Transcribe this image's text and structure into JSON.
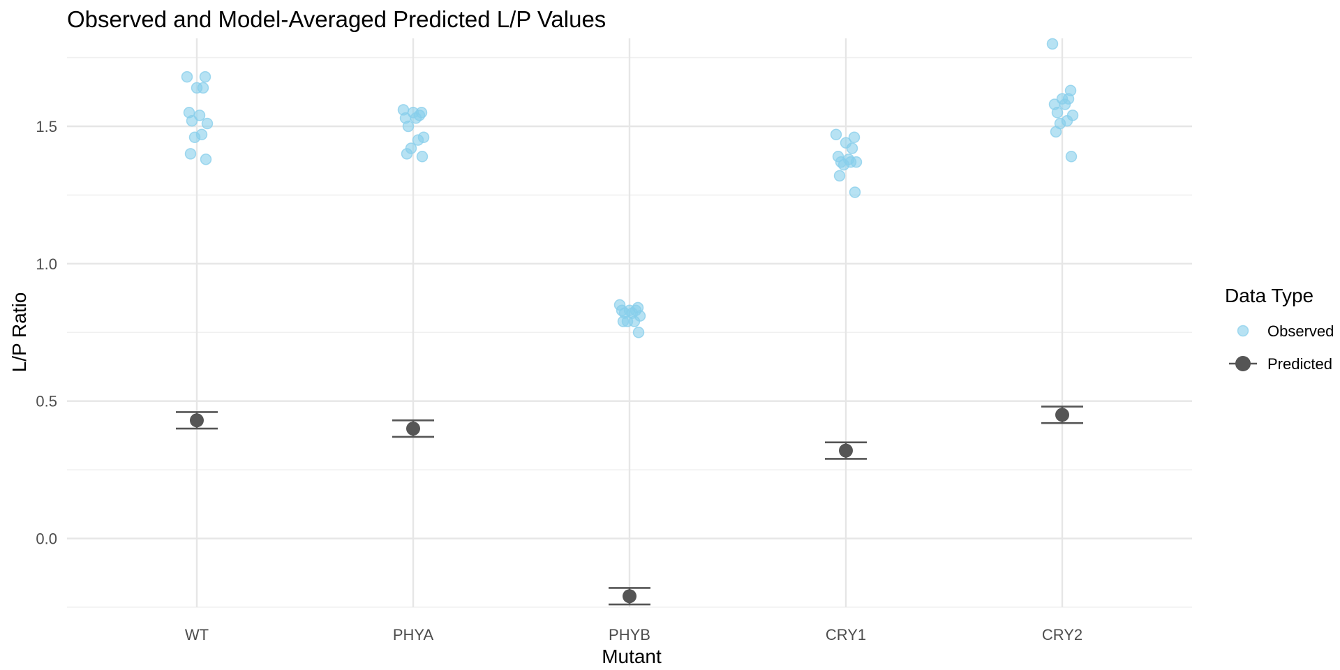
{
  "chart_data": {
    "type": "scatter",
    "title": "Observed and Model-Averaged Predicted L/P Values",
    "xlabel": "Mutant",
    "ylabel": "L/P Ratio",
    "categories": [
      "WT",
      "PHYA",
      "PHYB",
      "CRY1",
      "CRY2"
    ],
    "ylim": [
      -0.25,
      1.82
    ],
    "yticks": [
      0.0,
      0.5,
      1.0,
      1.5
    ],
    "ytick_labels": [
      "0.0",
      "0.5",
      "1.0",
      "1.5"
    ],
    "grid": true,
    "legend": {
      "title": "Data Type",
      "placement": "right",
      "entries": [
        "Observed",
        "Predicted"
      ]
    },
    "series": [
      {
        "name": "Observed",
        "style": "points",
        "color": "#87CEEB",
        "points": {
          "WT": [
            1.68,
            1.68,
            1.64,
            1.64,
            1.55,
            1.54,
            1.52,
            1.51,
            1.47,
            1.46,
            1.4,
            1.38
          ],
          "PHYA": [
            1.56,
            1.55,
            1.55,
            1.54,
            1.53,
            1.53,
            1.5,
            1.46,
            1.45,
            1.42,
            1.4,
            1.39
          ],
          "PHYB": [
            0.85,
            0.84,
            0.83,
            0.83,
            0.83,
            0.82,
            0.82,
            0.81,
            0.79,
            0.79,
            0.79,
            0.75
          ],
          "CRY1": [
            1.47,
            1.46,
            1.44,
            1.42,
            1.39,
            1.38,
            1.37,
            1.37,
            1.37,
            1.36,
            1.32,
            1.26
          ],
          "CRY2": [
            1.8,
            1.63,
            1.6,
            1.6,
            1.58,
            1.58,
            1.55,
            1.54,
            1.52,
            1.51,
            1.48,
            1.39
          ]
        }
      },
      {
        "name": "Predicted",
        "style": "point-errorbar",
        "color": "#555555",
        "values": [
          0.43,
          0.4,
          -0.21,
          0.32,
          0.45
        ],
        "lower": [
          0.4,
          0.37,
          -0.24,
          0.29,
          0.42
        ],
        "upper": [
          0.46,
          0.43,
          -0.18,
          0.35,
          0.48
        ]
      }
    ]
  }
}
